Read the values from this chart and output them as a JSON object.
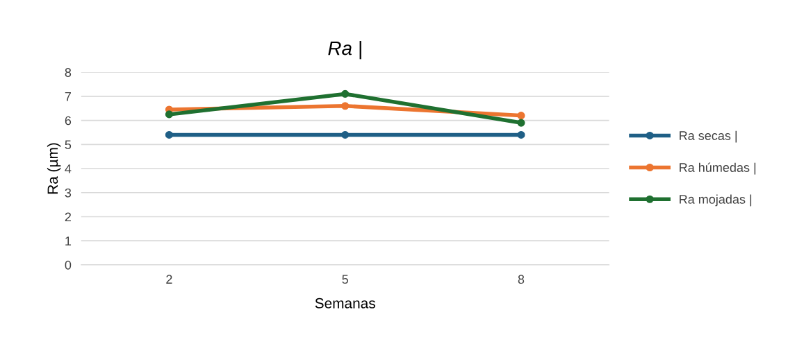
{
  "chart_data": {
    "type": "line",
    "title": "Ra |",
    "xlabel": "Semanas",
    "ylabel": "Ra (µm)",
    "categories": [
      "2",
      "5",
      "8"
    ],
    "series": [
      {
        "name": "Ra secas |",
        "color": "#1f5f86",
        "values": [
          5.4,
          5.4,
          5.4
        ]
      },
      {
        "name": "Ra húmedas |",
        "color": "#ec7530",
        "values": [
          6.45,
          6.6,
          6.2
        ]
      },
      {
        "name": "Ra mojadas |",
        "color": "#1f7030",
        "values": [
          6.25,
          7.1,
          5.9
        ]
      }
    ],
    "ylim": [
      0,
      8
    ],
    "yticks": [
      0,
      1,
      2,
      3,
      4,
      5,
      6,
      7,
      8
    ],
    "grid": "y",
    "legend": "right",
    "marker": "circle",
    "line_style": "solid"
  }
}
